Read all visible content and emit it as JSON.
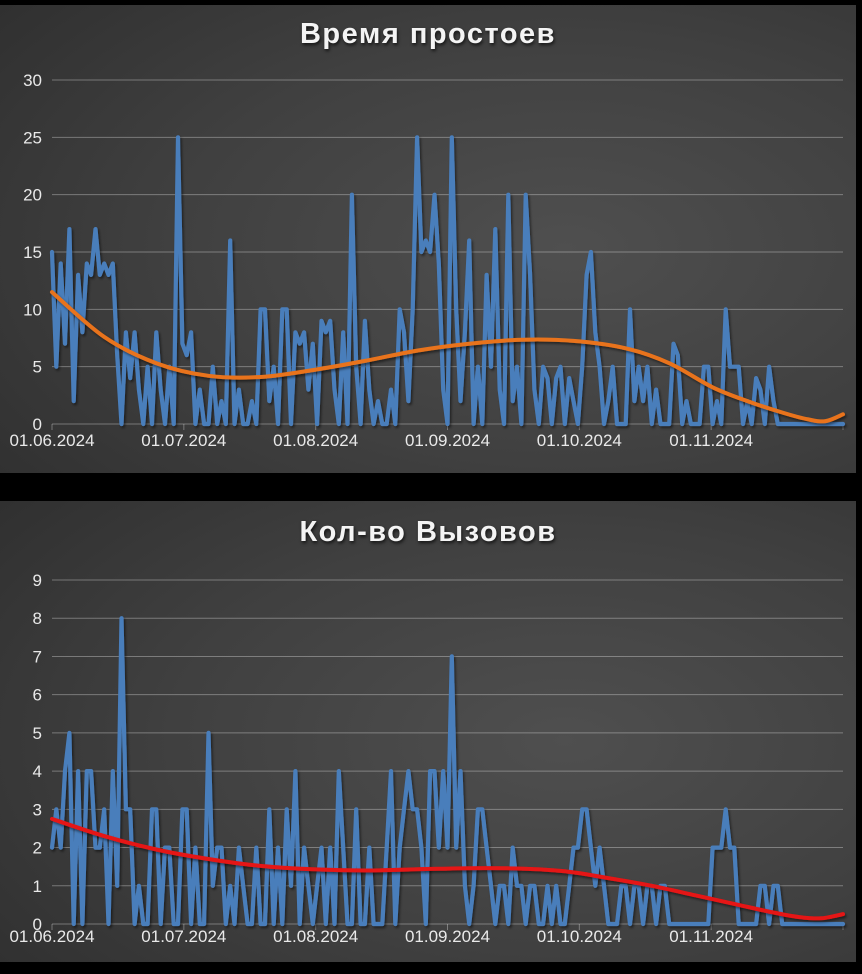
{
  "theme": {
    "page_background": "#000000",
    "grid_color": "rgba(255,255,255,0.32)",
    "tick_label_color": "#e9e9e9",
    "title_color": "#f4f4f4",
    "series_blue": "#4a7ebb",
    "trend_orange": "#e8731d",
    "trend_red": "#e51414"
  },
  "chart_data": [
    {
      "type": "line",
      "title": "Время простоев",
      "x_tick_labels": [
        "01.06.2024",
        "01.07.2024",
        "01.08.2024",
        "01.09.2024",
        "01.10.2024",
        "01.11.2024"
      ],
      "x_range_days": 183,
      "ylim": [
        0,
        30
      ],
      "y_ticks": [
        0,
        5,
        10,
        15,
        20,
        25,
        30
      ],
      "grid": true,
      "legend": "none",
      "series": [
        {
          "name": "downtime-daily",
          "color": "#4a7ebb",
          "values": [
            15,
            5,
            14,
            7,
            17,
            2,
            13,
            8,
            14,
            13,
            17,
            13,
            14,
            13,
            14,
            6,
            0,
            8,
            4,
            8,
            3,
            0,
            5,
            0,
            8,
            3,
            0,
            5,
            0,
            25,
            7,
            6,
            8,
            0,
            3,
            0,
            0,
            5,
            0,
            2,
            0,
            16,
            0,
            3,
            0,
            0,
            2,
            0,
            10,
            10,
            2,
            5,
            0,
            10,
            10,
            0,
            8,
            7,
            8,
            3,
            7,
            0,
            9,
            8,
            9,
            3,
            0,
            8,
            0,
            20,
            5,
            0,
            9,
            3,
            0,
            2,
            0,
            0,
            3,
            0,
            10,
            8,
            2,
            10,
            25,
            15,
            16,
            15,
            20,
            14,
            3,
            0,
            25,
            10,
            2,
            8,
            16,
            0,
            5,
            0,
            13,
            5,
            17,
            3,
            0,
            20,
            2,
            5,
            0,
            20,
            13,
            3,
            0,
            5,
            4,
            0,
            4,
            5,
            0,
            4,
            2,
            0,
            5,
            13,
            15,
            8,
            5,
            0,
            2,
            5,
            0,
            0,
            0,
            10,
            2,
            5,
            2,
            5,
            0,
            3,
            0,
            0,
            0,
            7,
            6,
            0,
            2,
            0,
            0,
            0,
            5,
            5,
            0,
            2,
            0,
            10,
            5,
            5,
            5,
            0,
            2,
            0,
            4,
            3,
            0,
            5,
            2,
            0,
            0,
            0,
            0,
            0,
            0,
            0,
            0,
            0,
            0,
            0,
            0,
            0,
            0,
            0,
            0
          ]
        }
      ],
      "trend": {
        "name": "downtime-trend",
        "color": "#e8731d",
        "points": [
          [
            0,
            11.5
          ],
          [
            12,
            7.6
          ],
          [
            24,
            5.3
          ],
          [
            36,
            4.2
          ],
          [
            48,
            4.1
          ],
          [
            60,
            4.7
          ],
          [
            72,
            5.5
          ],
          [
            84,
            6.4
          ],
          [
            96,
            7.0
          ],
          [
            108,
            7.35
          ],
          [
            120,
            7.25
          ],
          [
            132,
            6.6
          ],
          [
            142,
            5.3
          ],
          [
            152,
            3.2
          ],
          [
            160,
            2.0
          ],
          [
            168,
            1.0
          ],
          [
            174,
            0.4
          ],
          [
            178,
            0.25
          ],
          [
            182,
            0.85
          ]
        ]
      }
    },
    {
      "type": "line",
      "title": "Кол-во Вызовов",
      "x_tick_labels": [
        "01.06.2024",
        "01.07.2024",
        "01.08.2024",
        "01.09.2024",
        "01.10.2024",
        "01.11.2024"
      ],
      "x_range_days": 183,
      "ylim": [
        0,
        9
      ],
      "y_ticks": [
        0,
        1,
        2,
        3,
        4,
        5,
        6,
        7,
        8,
        9
      ],
      "grid": true,
      "legend": "none",
      "series": [
        {
          "name": "calls-daily",
          "color": "#4a7ebb",
          "values": [
            2,
            3,
            2,
            4,
            5,
            0,
            4,
            0,
            4,
            4,
            2,
            2,
            3,
            0,
            4,
            1,
            8,
            3,
            3,
            0,
            1,
            0,
            0,
            3,
            3,
            0,
            2,
            2,
            0,
            0,
            3,
            3,
            0,
            2,
            0,
            0,
            5,
            1,
            2,
            2,
            0,
            1,
            0,
            2,
            1,
            0,
            0,
            2,
            0,
            0,
            3,
            0,
            2,
            0,
            3,
            1,
            4,
            0,
            2,
            1,
            0,
            1,
            2,
            0,
            2,
            0,
            4,
            2,
            0,
            0,
            3,
            0,
            0,
            2,
            0,
            0,
            0,
            2,
            4,
            0,
            2,
            3,
            4,
            3,
            3,
            2,
            0,
            4,
            4,
            2,
            4,
            2,
            7,
            2,
            4,
            1,
            0,
            1,
            3,
            3,
            2,
            1,
            0,
            1,
            1,
            0,
            2,
            1,
            1,
            0,
            1,
            1,
            0,
            0,
            1,
            0,
            1,
            0,
            0,
            1,
            2,
            2,
            3,
            3,
            2,
            1,
            2,
            1,
            0,
            0,
            0,
            1,
            1,
            0,
            1,
            1,
            0,
            1,
            1,
            0,
            1,
            1,
            0,
            0,
            0,
            0,
            0,
            0,
            0,
            0,
            0,
            0,
            2,
            2,
            2,
            3,
            2,
            2,
            0,
            0,
            0,
            0,
            0,
            1,
            1,
            0,
            1,
            1,
            0,
            0,
            0,
            0,
            0,
            0,
            0,
            0,
            0,
            0,
            0,
            0,
            0,
            0,
            0
          ]
        }
      ],
      "trend": {
        "name": "calls-trend",
        "color": "#e51414",
        "points": [
          [
            0,
            2.75
          ],
          [
            12,
            2.3
          ],
          [
            24,
            1.95
          ],
          [
            36,
            1.7
          ],
          [
            48,
            1.52
          ],
          [
            60,
            1.43
          ],
          [
            72,
            1.4
          ],
          [
            84,
            1.43
          ],
          [
            96,
            1.46
          ],
          [
            108,
            1.45
          ],
          [
            118,
            1.38
          ],
          [
            128,
            1.2
          ],
          [
            138,
            1.0
          ],
          [
            148,
            0.75
          ],
          [
            158,
            0.5
          ],
          [
            166,
            0.3
          ],
          [
            172,
            0.18
          ],
          [
            177,
            0.15
          ],
          [
            182,
            0.26
          ]
        ]
      }
    }
  ]
}
